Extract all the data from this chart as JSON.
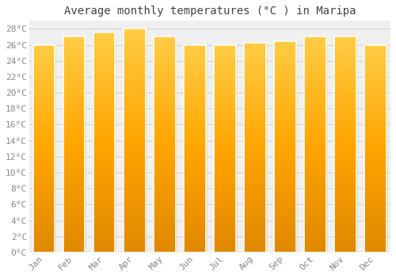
{
  "title": "Average monthly temperatures (°C ) in Maripa",
  "months": [
    "Jan",
    "Feb",
    "Mar",
    "Apr",
    "May",
    "Jun",
    "Jul",
    "Aug",
    "Sep",
    "Oct",
    "Nov",
    "Dec"
  ],
  "values": [
    26,
    27,
    27.5,
    28,
    27,
    26,
    26,
    26.3,
    26.5,
    27,
    27,
    26
  ],
  "bar_color_main": "#FFA500",
  "bar_color_light": "#FFCC44",
  "bar_color_dark": "#E08800",
  "background_color": "#ffffff",
  "plot_bg_color": "#f0f0f0",
  "grid_color": "#cccccc",
  "ylim": [
    0,
    29
  ],
  "ytick_step": 2,
  "title_fontsize": 10,
  "tick_fontsize": 8,
  "tick_color": "#888888",
  "font_family": "monospace"
}
